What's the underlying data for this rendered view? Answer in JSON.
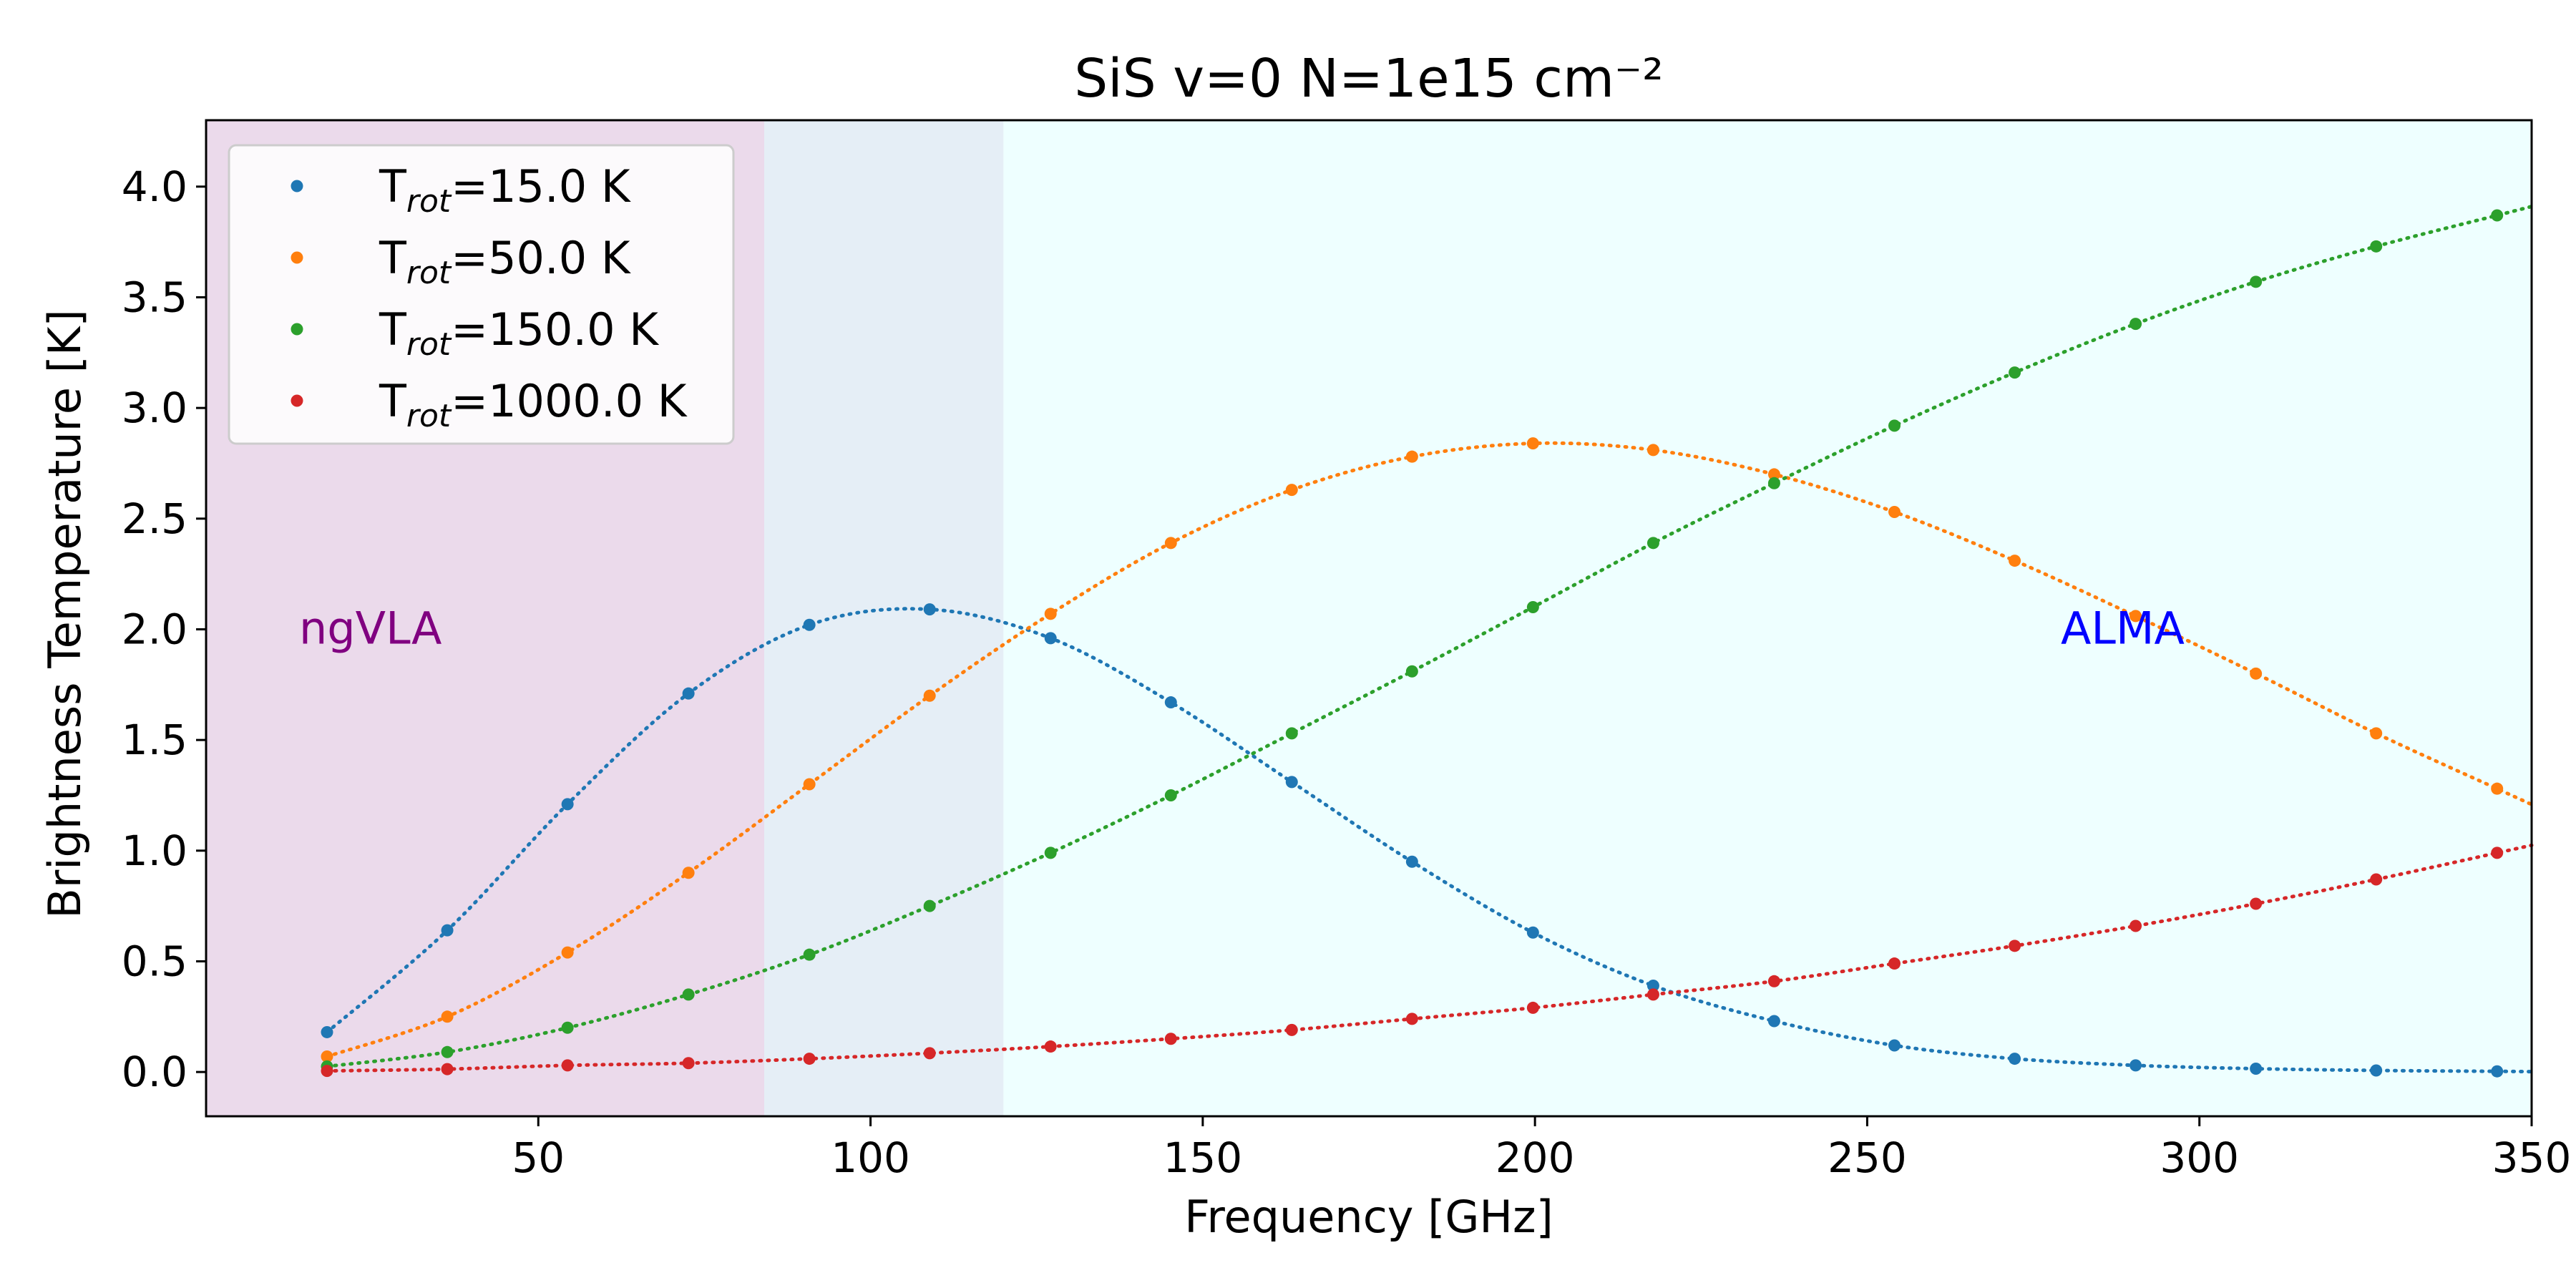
{
  "chart_data": {
    "type": "line",
    "title": "SiS v=0    N=1e15 cm⁻²",
    "xlabel": "Frequency [GHz]",
    "ylabel": "Brightness Temperature [K]",
    "xlim": [
      0,
      350
    ],
    "ylim": [
      -0.2,
      4.3
    ],
    "xticks": [
      50,
      100,
      150,
      200,
      250,
      300,
      350
    ],
    "yticks": [
      0.0,
      0.5,
      1.0,
      1.5,
      2.0,
      2.5,
      3.0,
      3.5,
      4.0
    ],
    "ytick_labels": [
      "0.0",
      "0.5",
      "1.0",
      "1.5",
      "2.0",
      "2.5",
      "3.0",
      "3.5",
      "4.0"
    ],
    "grid": false,
    "legend_position": "top-left",
    "regions": [
      {
        "label": "ngVLA",
        "x_range": [
          0,
          120
        ],
        "color": "#e8d4e8",
        "label_color": "#800080"
      },
      {
        "label": "ALMA",
        "x_range": [
          84,
          350
        ],
        "color": "#e0ffff",
        "label_color": "#0000ff"
      }
    ],
    "x": [
      18.2,
      36.3,
      54.4,
      72.6,
      90.8,
      108.9,
      127.1,
      145.2,
      163.4,
      181.5,
      199.7,
      217.8,
      236.0,
      254.1,
      272.2,
      290.4,
      308.5,
      326.6,
      344.8
    ],
    "series": [
      {
        "name": "15.0 K",
        "legend_prefix": "T",
        "legend_sub": "rot",
        "color": "#1f77b4",
        "values": [
          0.18,
          0.64,
          1.21,
          1.71,
          2.02,
          2.09,
          1.96,
          1.67,
          1.31,
          0.95,
          0.63,
          0.39,
          0.23,
          0.12,
          0.06,
          0.03,
          0.015,
          0.007,
          0.003
        ]
      },
      {
        "name": "50.0 K",
        "legend_prefix": "T",
        "legend_sub": "rot",
        "color": "#ff7f0e",
        "values": [
          0.07,
          0.25,
          0.54,
          0.9,
          1.3,
          1.7,
          2.07,
          2.39,
          2.63,
          2.78,
          2.84,
          2.81,
          2.7,
          2.53,
          2.31,
          2.06,
          1.8,
          1.53,
          1.28
        ]
      },
      {
        "name": "150.0 K",
        "legend_prefix": "T",
        "legend_sub": "rot",
        "color": "#2ca02c",
        "values": [
          0.025,
          0.09,
          0.2,
          0.35,
          0.53,
          0.75,
          0.99,
          1.25,
          1.53,
          1.81,
          2.1,
          2.39,
          2.66,
          2.92,
          3.16,
          3.38,
          3.57,
          3.73,
          3.87
        ]
      },
      {
        "name": "1000.0 K",
        "legend_prefix": "T",
        "legend_sub": "rot",
        "color": "#d62728",
        "values": [
          0.005,
          0.013,
          0.03,
          0.04,
          0.06,
          0.085,
          0.115,
          0.15,
          0.19,
          0.24,
          0.29,
          0.35,
          0.41,
          0.49,
          0.57,
          0.66,
          0.76,
          0.87,
          0.99
        ]
      }
    ]
  }
}
